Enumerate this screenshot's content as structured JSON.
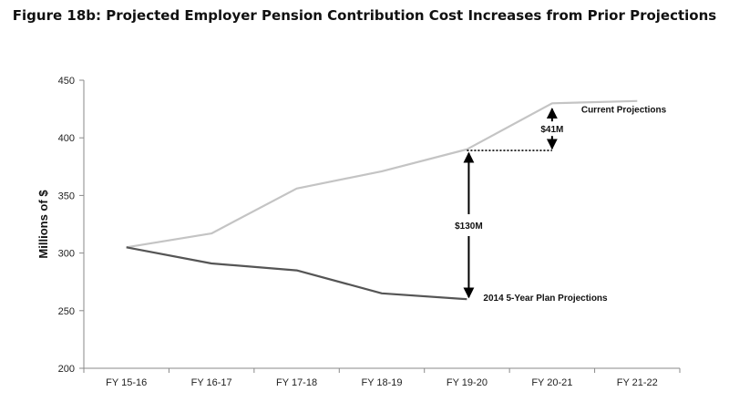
{
  "chart_data": {
    "type": "line",
    "title": "Figure 18b: Projected Employer Pension Contribution Cost Increases from Prior Projections",
    "xlabel": "",
    "ylabel": "Millions of $",
    "ylim": [
      200,
      450
    ],
    "yticks": [
      200,
      250,
      300,
      350,
      400,
      450
    ],
    "categories": [
      "FY 15-16",
      "FY 16-17",
      "FY 17-18",
      "FY 18-19",
      "FY 19-20",
      "FY 20-21",
      "FY 21-22"
    ],
    "grid": false,
    "series": [
      {
        "name": "Current Projections",
        "color": "#c4c4c4",
        "values": [
          305,
          317,
          356,
          371,
          390,
          430,
          432
        ]
      },
      {
        "name": "2014 5-Year Plan Projections",
        "color": "#555555",
        "values": [
          305,
          291,
          285,
          265,
          260,
          null,
          null
        ]
      }
    ],
    "annotations": [
      {
        "text": "$130M",
        "category": "FY 19-20",
        "from": 260,
        "to": 390
      },
      {
        "text": "$41M",
        "category": "FY 20-21",
        "from": 389,
        "to": 430
      }
    ]
  }
}
